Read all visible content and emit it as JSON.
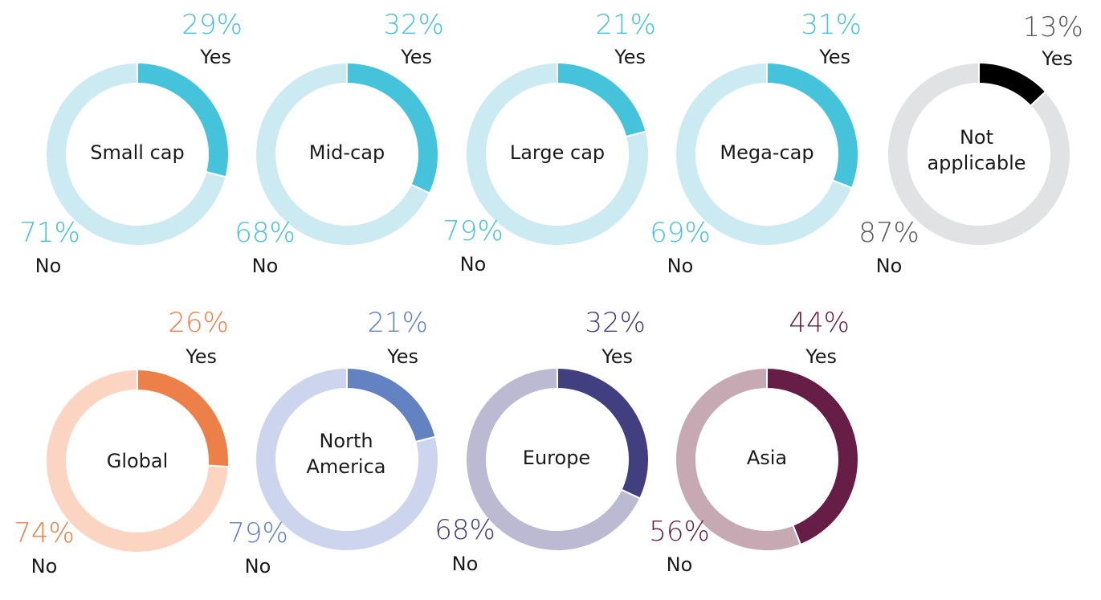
{
  "chart_data": [
    {
      "type": "pie",
      "title": "Small cap",
      "categories": [
        "Yes",
        "No"
      ],
      "values": [
        29,
        71
      ],
      "colors": {
        "yes": "#44c3db",
        "no": "#cceaf2",
        "text": "#44c3db"
      }
    },
    {
      "type": "pie",
      "title": "Mid-cap",
      "categories": [
        "Yes",
        "No"
      ],
      "values": [
        32,
        68
      ],
      "colors": {
        "yes": "#44c3db",
        "no": "#cceaf2",
        "text": "#44c3db"
      }
    },
    {
      "type": "pie",
      "title": "Large cap",
      "categories": [
        "Yes",
        "No"
      ],
      "values": [
        21,
        79
      ],
      "colors": {
        "yes": "#44c3db",
        "no": "#cceaf2",
        "text": "#44c3db"
      }
    },
    {
      "type": "pie",
      "title": "Mega-cap",
      "categories": [
        "Yes",
        "No"
      ],
      "values": [
        31,
        69
      ],
      "colors": {
        "yes": "#44c3db",
        "no": "#cceaf2",
        "text": "#44c3db"
      }
    },
    {
      "type": "pie",
      "title": "Not applicable",
      "categories": [
        "Yes",
        "No"
      ],
      "values": [
        13,
        87
      ],
      "colors": {
        "yes": "#000000",
        "no": "#e1e2e4",
        "text": "#5a5a5a"
      }
    },
    {
      "type": "pie",
      "title": "Global",
      "categories": [
        "Yes",
        "No"
      ],
      "values": [
        26,
        74
      ],
      "colors": {
        "yes": "#ed8048",
        "no": "#fbd5c1",
        "text": "#ed8048"
      }
    },
    {
      "type": "pie",
      "title": "North America",
      "categories": [
        "Yes",
        "No"
      ],
      "values": [
        21,
        79
      ],
      "colors": {
        "yes": "#6282c2",
        "no": "#cdd4ed",
        "text": "#6282c2"
      }
    },
    {
      "type": "pie",
      "title": "Europe",
      "categories": [
        "Yes",
        "No"
      ],
      "values": [
        32,
        68
      ],
      "colors": {
        "yes": "#423f80",
        "no": "#bcb9d3",
        "text": "#423f80"
      }
    },
    {
      "type": "pie",
      "title": "Asia",
      "categories": [
        "Yes",
        "No"
      ],
      "values": [
        44,
        56
      ],
      "colors": {
        "yes": "#661d46",
        "no": "#c6a9b2",
        "text": "#661d46"
      }
    }
  ],
  "labels": {
    "yes": [
      "29%",
      "32%",
      "21%",
      "31%",
      "13%",
      "26%",
      "21%",
      "32%",
      "44%"
    ],
    "no": [
      "71%",
      "68%",
      "79%",
      "69%",
      "87%",
      "74%",
      "79%",
      "68%",
      "56%"
    ],
    "yes_word": "Yes",
    "no_word": "No"
  }
}
